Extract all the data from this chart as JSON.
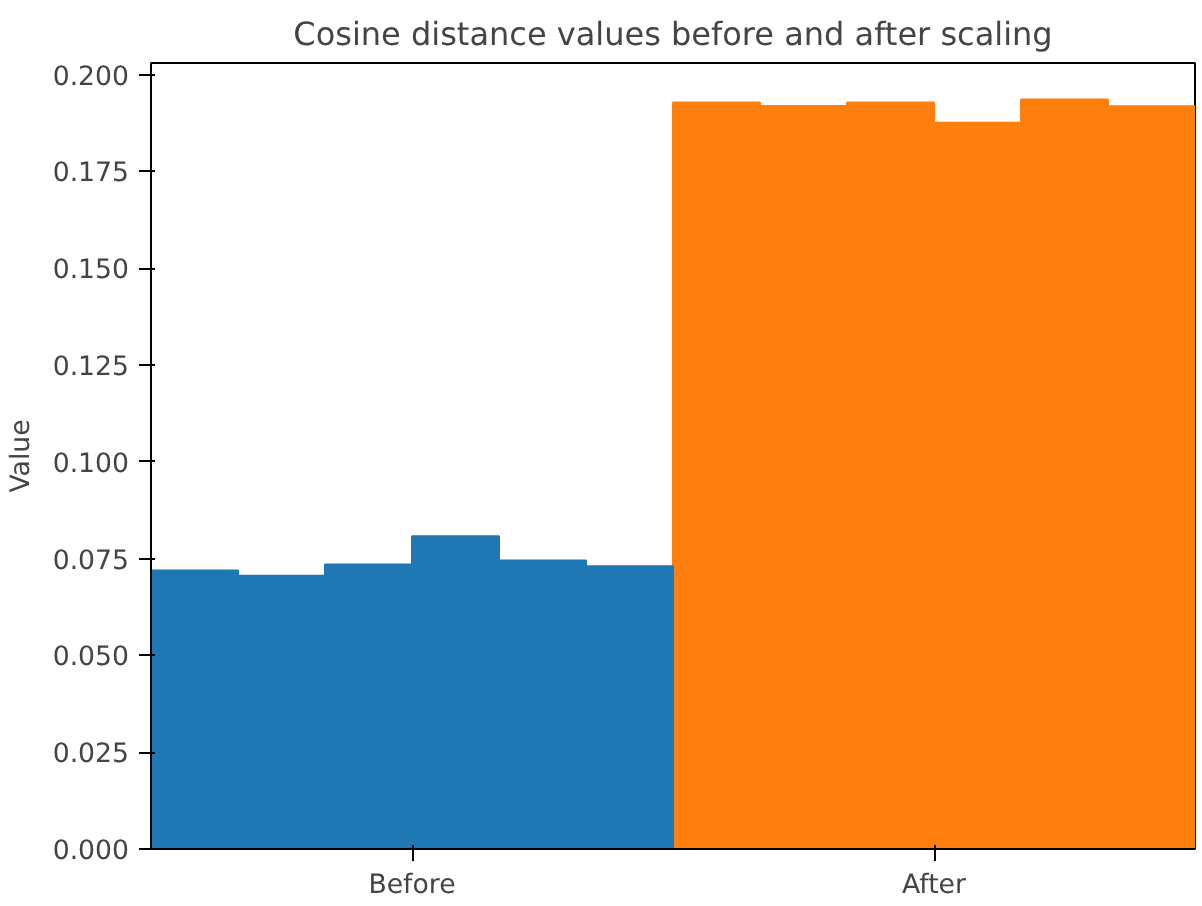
{
  "chart_data": {
    "type": "bar",
    "title": "Cosine distance values before and after scaling",
    "ylabel": "Value",
    "categories": [
      "Before",
      "After"
    ],
    "series": [
      {
        "colors": [
          "#1f77b4",
          "#ff7f0e"
        ],
        "values": [
          0.0719,
          0.1928
        ]
      },
      {
        "colors": [
          "#1f77b4",
          "#ff7f0e"
        ],
        "values": [
          0.0706,
          0.1919
        ]
      },
      {
        "colors": [
          "#1f77b4",
          "#ff7f0e"
        ],
        "values": [
          0.0735,
          0.1928
        ]
      },
      {
        "colors": [
          "#1f77b4",
          "#ff7f0e"
        ],
        "values": [
          0.0808,
          0.1876
        ]
      },
      {
        "colors": [
          "#1f77b4",
          "#ff7f0e"
        ],
        "values": [
          0.0745,
          0.1936
        ]
      },
      {
        "colors": [
          "#1f77b4",
          "#ff7f0e"
        ],
        "values": [
          0.073,
          0.1918
        ]
      }
    ],
    "ylim": [
      0,
      0.203
    ],
    "yticks": [
      {
        "value": 0,
        "label": "0.000"
      },
      0.025,
      {
        "value": 0.05,
        "label": "0.050"
      },
      0.075,
      {
        "value": 0.1,
        "label": "0.100"
      },
      0.125,
      {
        "value": 0.15,
        "label": "0.150"
      },
      0.175,
      {
        "value": 0.2,
        "label": "0.200"
      }
    ],
    "grid": false
  }
}
